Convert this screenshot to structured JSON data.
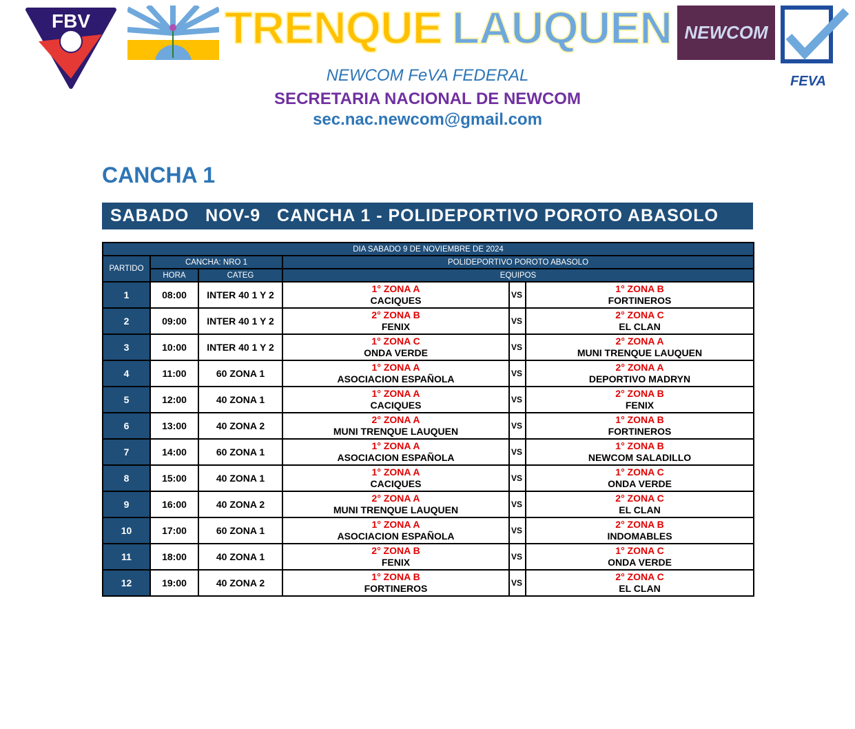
{
  "header": {
    "logo_left": "FBV",
    "title_part1": "TRENQUE",
    "title_part2": "LAUQUEN",
    "logo_newcom": "NEWCOM",
    "logo_feva": "FEVA",
    "line1": "NEWCOM FeVA FEDERAL",
    "line2": "SECRETARIA NACIONAL DE NEWCOM",
    "line3": "sec.nac.newcom@gmail.com"
  },
  "section_title": "CANCHA 1",
  "banner": "SABADO   NOV-9   CANCHA 1 - POLIDEPORTIVO POROTO ABASOLO",
  "table": {
    "day": "DIA SABADO 9 DE NOVIEMBRE DE 2024",
    "partido": "PARTIDO",
    "cancha": "CANCHA: NRO 1",
    "venue": "POLIDEPORTIVO POROTO ABASOLO",
    "hora": "HORA",
    "categ": "CATEG",
    "equipos": "EQUIPOS",
    "rows": [
      {
        "n": "1",
        "hora": "08:00",
        "categ": "INTER 40 1 Y 2",
        "z1": "1° ZONA A",
        "t1": "CACIQUES",
        "vs": "VS",
        "z2": "1° ZONA B",
        "t2": "FORTINEROS"
      },
      {
        "n": "2",
        "hora": "09:00",
        "categ": "INTER 40 1 Y 2",
        "z1": "2° ZONA B",
        "t1": "FENIX",
        "vs": "VS",
        "z2": "2° ZONA C",
        "t2": "EL CLAN"
      },
      {
        "n": "3",
        "hora": "10:00",
        "categ": "INTER 40 1 Y 2",
        "z1": "1° ZONA C",
        "t1": "ONDA VERDE",
        "vs": "VS",
        "z2": "2° ZONA A",
        "t2": "MUNI TRENQUE LAUQUEN"
      },
      {
        "n": "4",
        "hora": "11:00",
        "categ": "60 ZONA 1",
        "z1": "1° ZONA A",
        "t1": "ASOCIACION ESPAÑOLA",
        "vs": "VS",
        "z2": "2° ZONA A",
        "t2": "DEPORTIVO MADRYN"
      },
      {
        "n": "5",
        "hora": "12:00",
        "categ": "40 ZONA 1",
        "z1": "1° ZONA A",
        "t1": "CACIQUES",
        "vs": "VS",
        "z2": "2° ZONA B",
        "t2": "FENIX"
      },
      {
        "n": "6",
        "hora": "13:00",
        "categ": "40 ZONA 2",
        "z1": "2° ZONA A",
        "t1": "MUNI TRENQUE LAUQUEN",
        "vs": "VS",
        "z2": "1° ZONA B",
        "t2": "FORTINEROS"
      },
      {
        "n": "7",
        "hora": "14:00",
        "categ": "60 ZONA 1",
        "z1": "1° ZONA A",
        "t1": "ASOCIACION ESPAÑOLA",
        "vs": "VS",
        "z2": "1° ZONA B",
        "t2": "NEWCOM SALADILLO"
      },
      {
        "n": "8",
        "hora": "15:00",
        "categ": "40 ZONA 1",
        "z1": "1° ZONA A",
        "t1": "CACIQUES",
        "vs": "VS",
        "z2": "1° ZONA C",
        "t2": "ONDA VERDE"
      },
      {
        "n": "9",
        "hora": "16:00",
        "categ": "40 ZONA 2",
        "z1": "2° ZONA A",
        "t1": "MUNI TRENQUE LAUQUEN",
        "vs": "VS",
        "z2": "2° ZONA C",
        "t2": "EL CLAN"
      },
      {
        "n": "10",
        "hora": "17:00",
        "categ": "60 ZONA 1",
        "z1": "1° ZONA A",
        "t1": "ASOCIACION ESPAÑOLA",
        "vs": "VS",
        "z2": "2° ZONA B",
        "t2": "INDOMABLES"
      },
      {
        "n": "11",
        "hora": "18:00",
        "categ": "40 ZONA 1",
        "z1": "2° ZONA B",
        "t1": "FENIX",
        "vs": "VS",
        "z2": "1° ZONA C",
        "t2": "ONDA VERDE"
      },
      {
        "n": "12",
        "hora": "19:00",
        "categ": "40 ZONA 2",
        "z1": "1° ZONA B",
        "t1": "FORTINEROS",
        "vs": "VS",
        "z2": "2° ZONA C",
        "t2": "EL CLAN"
      }
    ]
  },
  "colors": {
    "navy": "#1f4e79",
    "zone_red": "#e00000",
    "blue": "#2e75b6",
    "purple": "#7030a0"
  }
}
